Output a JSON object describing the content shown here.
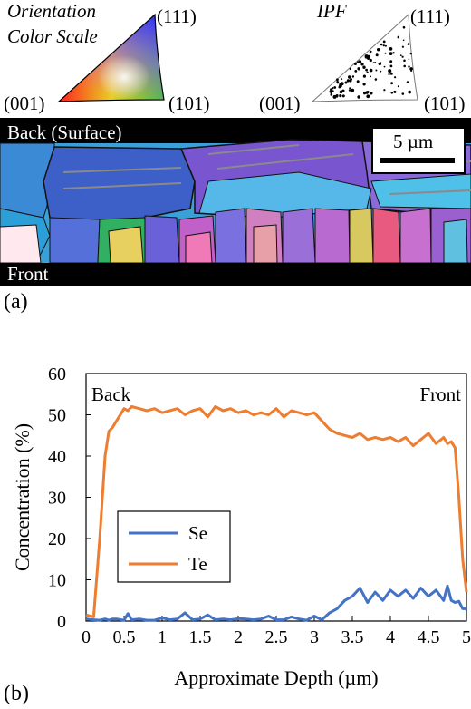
{
  "panel_a": {
    "letter": "(a)",
    "color_scale": {
      "title_line1": "Orientation",
      "title_line2": "Color Scale",
      "corner_001": "(001)",
      "corner_111": "(111)",
      "corner_101": "(101)"
    },
    "ipf": {
      "title": "IPF",
      "corner_001": "(001)",
      "corner_111": "(111)",
      "corner_101": "(101)"
    },
    "map": {
      "top_label": "Back (Surface)",
      "bottom_label": "Front",
      "scale_bar_label": "5 µm",
      "scale_bar_um": 5
    }
  },
  "panel_b": {
    "letter": "(b)"
  },
  "chart_data": {
    "type": "line",
    "xlabel": "Approximate Depth (µm)",
    "ylabel": "Concentration (%)",
    "xlim": [
      0,
      5
    ],
    "ylim": [
      0,
      60
    ],
    "xticks": [
      "0",
      "0.5",
      "1",
      "1.5",
      "2",
      "2.5",
      "3",
      "3.5",
      "4",
      "4.5",
      "5"
    ],
    "yticks": [
      "0",
      "10",
      "20",
      "30",
      "40",
      "50",
      "60"
    ],
    "grid": false,
    "legend_position": "lower-left",
    "annotations": [
      {
        "text": "Back",
        "position": "top-left"
      },
      {
        "text": "Front",
        "position": "top-right"
      }
    ],
    "x": [
      0,
      0.1,
      0.18,
      0.25,
      0.3,
      0.35,
      0.4,
      0.5,
      0.55,
      0.6,
      0.7,
      0.8,
      0.9,
      1.0,
      1.1,
      1.2,
      1.3,
      1.4,
      1.5,
      1.6,
      1.7,
      1.8,
      1.9,
      2.0,
      2.1,
      2.2,
      2.3,
      2.4,
      2.5,
      2.6,
      2.7,
      2.8,
      2.9,
      3.0,
      3.1,
      3.2,
      3.3,
      3.4,
      3.5,
      3.6,
      3.7,
      3.8,
      3.9,
      4.0,
      4.1,
      4.2,
      4.3,
      4.4,
      4.5,
      4.6,
      4.7,
      4.75,
      4.8,
      4.85,
      4.9,
      4.95,
      5.0
    ],
    "series": [
      {
        "name": "Se",
        "color": "#4472c4",
        "values": [
          0.5,
          0.3,
          0.2,
          0.5,
          0.2,
          0.5,
          0.5,
          0.2,
          1.8,
          0.3,
          0.5,
          0.2,
          0.2,
          0.8,
          0.3,
          0.5,
          2.0,
          0.3,
          0.5,
          1.5,
          0.3,
          0.5,
          0.3,
          0.6,
          0.5,
          0.3,
          0.5,
          1.2,
          0.3,
          0.3,
          1.0,
          0.5,
          0.2,
          1.2,
          0.3,
          2.0,
          3.0,
          5.0,
          6.0,
          8.0,
          4.5,
          7.0,
          5.0,
          7.5,
          6.0,
          7.5,
          5.5,
          8.0,
          6.0,
          7.5,
          5.0,
          8.5,
          5.0,
          4.5,
          4.8,
          3.0,
          3.0
        ]
      },
      {
        "name": "Te",
        "color": "#ed7d31",
        "values": [
          1.5,
          1.0,
          20.0,
          40.0,
          46.0,
          47.0,
          48.5,
          51.5,
          51.0,
          52.0,
          51.5,
          51.0,
          51.5,
          50.5,
          51.0,
          51.5,
          50.0,
          51.0,
          51.5,
          49.5,
          52.0,
          51.0,
          51.5,
          50.5,
          51.0,
          50.0,
          50.5,
          50.0,
          51.5,
          49.5,
          51.0,
          50.5,
          50.0,
          50.5,
          48.5,
          46.5,
          45.5,
          45.0,
          44.5,
          45.5,
          44.0,
          44.5,
          44.0,
          44.5,
          43.5,
          44.5,
          42.5,
          44.0,
          45.5,
          43.0,
          44.5,
          43.0,
          43.5,
          42.0,
          30.0,
          15.0,
          7.0
        ]
      }
    ]
  }
}
